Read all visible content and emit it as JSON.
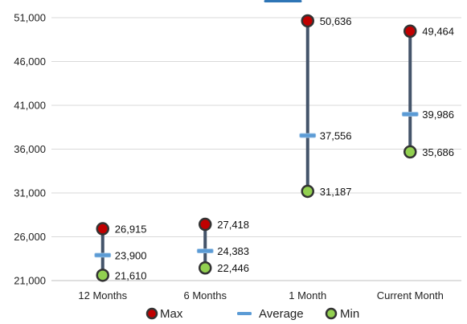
{
  "chart_data": {
    "type": "line",
    "subtype": "high-low-average",
    "categories": [
      "12 Months",
      "6 Months",
      "1 Month",
      "Current Month"
    ],
    "series": [
      {
        "name": "Max",
        "values": [
          26915,
          27418,
          50636,
          49464
        ],
        "value_labels": [
          "26,915",
          "27,418",
          "50,636",
          "49,464"
        ],
        "marker": "circle",
        "color": "#c00000",
        "border": "#333333"
      },
      {
        "name": "Average",
        "values": [
          23900,
          24383,
          37556,
          39986
        ],
        "value_labels": [
          "23,900",
          "24,383",
          "37,556",
          "39,986"
        ],
        "marker": "dash",
        "color": "#5b9bd5"
      },
      {
        "name": "Min",
        "values": [
          21610,
          22446,
          31187,
          35686
        ],
        "value_labels": [
          "21,610",
          "22,446",
          "31,187",
          "35,686"
        ],
        "marker": "circle",
        "color": "#92d050",
        "border": "#333333"
      }
    ],
    "ylim": [
      21000,
      51000
    ],
    "yticks": [
      21000,
      26000,
      31000,
      36000,
      41000,
      46000,
      51000
    ],
    "ytick_labels": [
      "21,000",
      "26,000",
      "31,000",
      "36,000",
      "41,000",
      "46,000",
      "51,000"
    ],
    "range_line_color": "#44546a",
    "grid": true,
    "legend_position": "bottom",
    "title": "",
    "xlabel": "",
    "ylabel": ""
  }
}
